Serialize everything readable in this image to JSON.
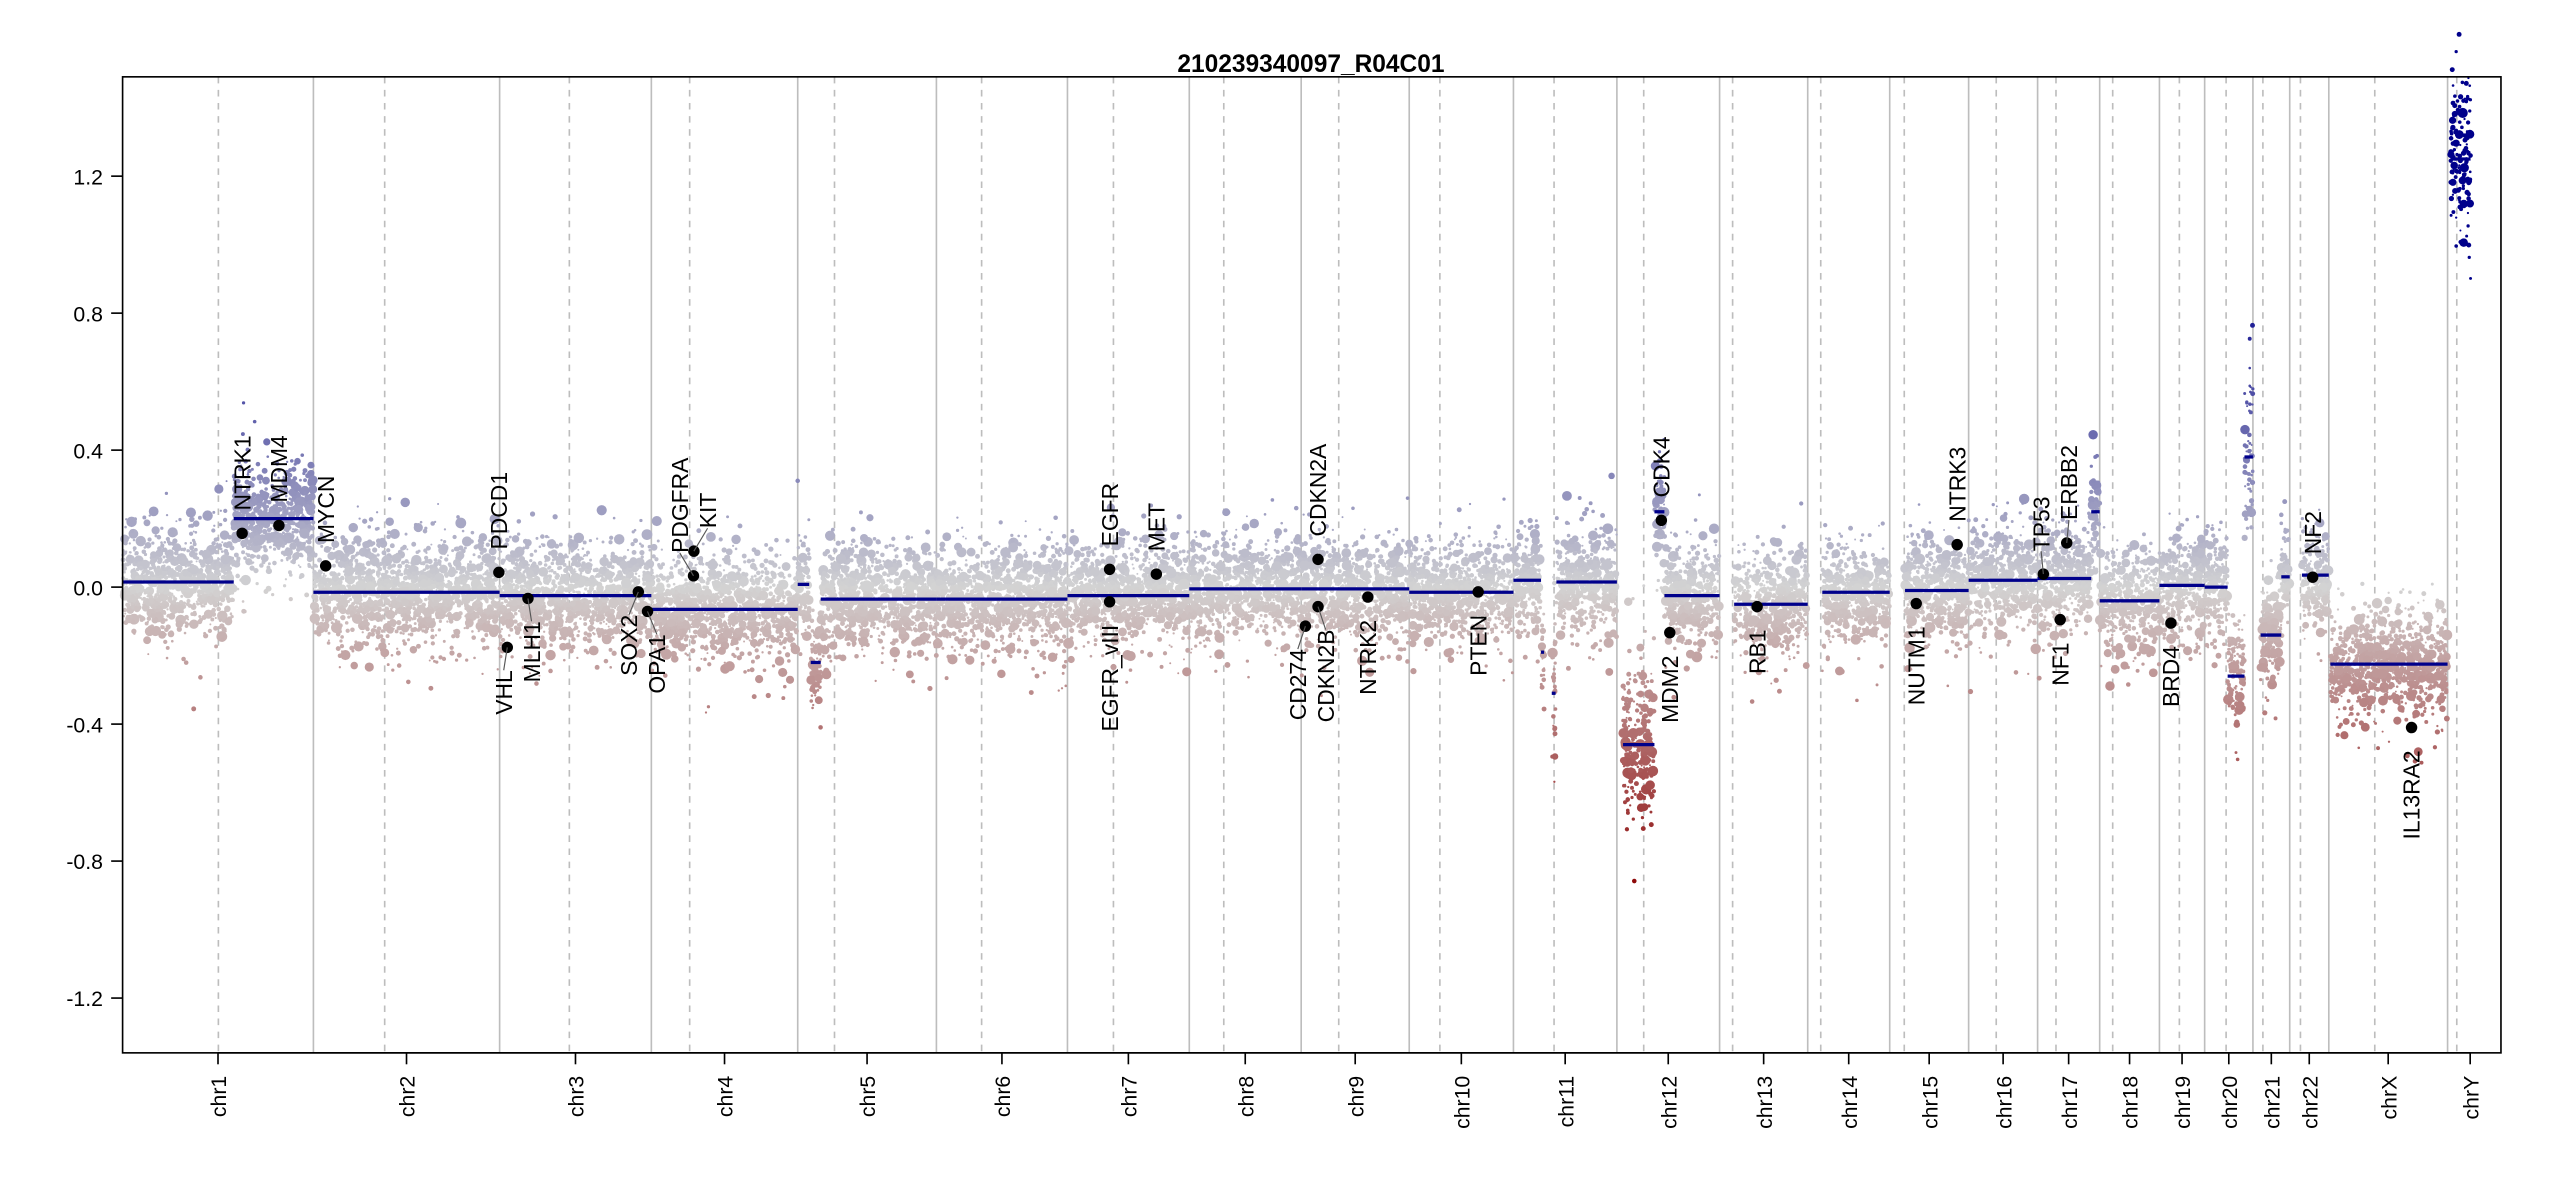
{
  "chart_data": {
    "type": "scatter",
    "title": "210239340097_R04C01",
    "xlabel": "",
    "ylabel": "",
    "ylim": [
      -1.36,
      1.49
    ],
    "yticks": [
      -1.2,
      -0.8,
      -0.4,
      0.0,
      0.4,
      0.8,
      1.2
    ],
    "ytick_labels": [
      "-1.2",
      "-0.8",
      "-0.4",
      "0.0",
      "0.4",
      "0.8",
      "1.2"
    ],
    "grid": "chromosome boundaries (solid) and centromeres (dashed)",
    "colors": {
      "gain": "#00008b",
      "neutral": "#d3d3d3",
      "loss": "#8b0000",
      "segment": "#00008b",
      "gene": "#000000"
    },
    "chromosomes": [
      {
        "name": "chr1",
        "length": 249,
        "centromere": 125
      },
      {
        "name": "chr2",
        "length": 243,
        "centromere": 93
      },
      {
        "name": "chr3",
        "length": 198,
        "centromere": 91
      },
      {
        "name": "chr4",
        "length": 191,
        "centromere": 50
      },
      {
        "name": "chr5",
        "length": 181,
        "centromere": 48
      },
      {
        "name": "chr6",
        "length": 171,
        "centromere": 59
      },
      {
        "name": "chr7",
        "length": 159,
        "centromere": 60
      },
      {
        "name": "chr8",
        "length": 146,
        "centromere": 45
      },
      {
        "name": "chr9",
        "length": 141,
        "centromere": 49
      },
      {
        "name": "chr10",
        "length": 136,
        "centromere": 40
      },
      {
        "name": "chr11",
        "length": 135,
        "centromere": 53
      },
      {
        "name": "chr12",
        "length": 134,
        "centromere": 35
      },
      {
        "name": "chr13",
        "length": 115,
        "centromere": 17
      },
      {
        "name": "chr14",
        "length": 107,
        "centromere": 17
      },
      {
        "name": "chr15",
        "length": 103,
        "centromere": 19
      },
      {
        "name": "chr16",
        "length": 90,
        "centromere": 36
      },
      {
        "name": "chr17",
        "length": 81,
        "centromere": 24
      },
      {
        "name": "chr18",
        "length": 78,
        "centromere": 17
      },
      {
        "name": "chr19",
        "length": 59,
        "centromere": 26
      },
      {
        "name": "chr20",
        "length": 63,
        "centromere": 28
      },
      {
        "name": "chr21",
        "length": 48,
        "centromere": 13
      },
      {
        "name": "chr22",
        "length": 51,
        "centromere": 14
      },
      {
        "name": "chrX",
        "length": 155,
        "centromere": 60
      },
      {
        "name": "chrY",
        "length": 59,
        "centromere": 12
      }
    ],
    "segments": [
      [
        "chr1",
        0,
        145,
        0.015
      ],
      [
        "chr1",
        145,
        249,
        0.2
      ],
      [
        "chr2",
        0,
        243,
        -0.015
      ],
      [
        "chr3",
        0,
        198,
        -0.025
      ],
      [
        "chr4",
        0,
        191,
        -0.065
      ],
      [
        "chr5",
        0,
        15,
        0.008
      ],
      [
        "chr5",
        17,
        30,
        -0.22
      ],
      [
        "chr5",
        30,
        181,
        -0.035
      ],
      [
        "chr6",
        0,
        171,
        -0.035
      ],
      [
        "chr7",
        0,
        159,
        -0.025
      ],
      [
        "chr8",
        0,
        146,
        -0.005
      ],
      [
        "chr9",
        0,
        141,
        -0.005
      ],
      [
        "chr10",
        0,
        136,
        -0.015
      ],
      [
        "chr11",
        0,
        36,
        0.02
      ],
      [
        "chr11",
        36,
        40,
        -0.19
      ],
      [
        "chr11",
        50,
        55,
        -0.31
      ],
      [
        "chr11",
        56,
        135,
        0.015
      ],
      [
        "chr12",
        8,
        49,
        -0.46
      ],
      [
        "chr12",
        49,
        62,
        0.22
      ],
      [
        "chr12",
        62,
        134,
        -0.025
      ],
      [
        "chr13",
        19,
        115,
        -0.05
      ],
      [
        "chr14",
        19,
        107,
        -0.015
      ],
      [
        "chr15",
        20,
        103,
        -0.01
      ],
      [
        "chr16",
        0,
        90,
        0.02
      ],
      [
        "chr17",
        0,
        70,
        0.025
      ],
      [
        "chr17",
        70,
        81,
        0.22
      ],
      [
        "chr18",
        0,
        78,
        -0.04
      ],
      [
        "chr19",
        0,
        59,
        0.005
      ],
      [
        "chr20",
        0,
        30,
        0.0
      ],
      [
        "chr20",
        30,
        52,
        -0.26
      ],
      [
        "chr20",
        52,
        63,
        0.38
      ],
      [
        "chr21",
        10,
        37,
        -0.14
      ],
      [
        "chr21",
        37,
        48,
        0.03
      ],
      [
        "chr22",
        16,
        51,
        0.035
      ],
      [
        "chrX",
        2,
        155,
        -0.225
      ],
      [
        "chrY",
        4,
        30,
        1.25
      ]
    ],
    "genes": [
      {
        "name": "NTRK1",
        "chr": "chr1",
        "pos": 156,
        "value": 0.157,
        "label": "above"
      },
      {
        "name": "MDM4",
        "chr": "chr1",
        "pos": 204,
        "value": 0.18,
        "label": "above"
      },
      {
        "name": "MYCN",
        "chr": "chr2",
        "pos": 16,
        "value": 0.062,
        "label": "above"
      },
      {
        "name": "PDCD1",
        "chr": "chr2",
        "pos": 242,
        "value": 0.043,
        "label": "above"
      },
      {
        "name": "VHL",
        "chr": "chr3",
        "pos": 10,
        "value": -0.176,
        "label": "below"
      },
      {
        "name": "MLH1",
        "chr": "chr3",
        "pos": 37,
        "value": -0.033,
        "label": "below"
      },
      {
        "name": "SOX2",
        "chr": "chr3",
        "pos": 181,
        "value": -0.014,
        "label": "below"
      },
      {
        "name": "OPA1",
        "chr": "chr3",
        "pos": 193,
        "value": -0.071,
        "label": "below"
      },
      {
        "name": "PDGFRA",
        "chr": "chr4",
        "pos": 55,
        "value": 0.033,
        "label": "above"
      },
      {
        "name": "KIT",
        "chr": "chr4",
        "pos": 55.5,
        "value": 0.105,
        "label": "above"
      },
      {
        "name": "EGFR",
        "chr": "chr7",
        "pos": 55,
        "value": 0.052,
        "label": "above"
      },
      {
        "name": "EGFR_vIII",
        "chr": "chr7",
        "pos": 55,
        "value": -0.043,
        "label": "below"
      },
      {
        "name": "MET",
        "chr": "chr7",
        "pos": 116,
        "value": 0.038,
        "label": "above"
      },
      {
        "name": "CDKN2A",
        "chr": "chr9",
        "pos": 22,
        "value": 0.081,
        "label": "above"
      },
      {
        "name": "CD274",
        "chr": "chr9",
        "pos": 5.5,
        "value": -0.114,
        "label": "below"
      },
      {
        "name": "CDKN2B",
        "chr": "chr9",
        "pos": 22,
        "value": -0.057,
        "label": "below"
      },
      {
        "name": "NTRK2",
        "chr": "chr9",
        "pos": 87,
        "value": -0.029,
        "label": "below"
      },
      {
        "name": "PTEN",
        "chr": "chr10",
        "pos": 90,
        "value": -0.014,
        "label": "below"
      },
      {
        "name": "CDK4",
        "chr": "chr12",
        "pos": 58,
        "value": 0.195,
        "label": "above"
      },
      {
        "name": "MDM2",
        "chr": "chr12",
        "pos": 69,
        "value": -0.133,
        "label": "below"
      },
      {
        "name": "RB1",
        "chr": "chr13",
        "pos": 49,
        "value": -0.057,
        "label": "below"
      },
      {
        "name": "NUTM1",
        "chr": "chr15",
        "pos": 34.6,
        "value": -0.048,
        "label": "below"
      },
      {
        "name": "NTRK3",
        "chr": "chr15",
        "pos": 88,
        "value": 0.124,
        "label": "above"
      },
      {
        "name": "TP53",
        "chr": "chr17",
        "pos": 7.5,
        "value": 0.038,
        "label": "above"
      },
      {
        "name": "ERBB2",
        "chr": "chr17",
        "pos": 38,
        "value": 0.129,
        "label": "above"
      },
      {
        "name": "NF1",
        "chr": "chr17",
        "pos": 29.5,
        "value": -0.095,
        "label": "below"
      },
      {
        "name": "BRD4",
        "chr": "chr19",
        "pos": 15,
        "value": -0.105,
        "label": "below"
      },
      {
        "name": "NF2",
        "chr": "chr22",
        "pos": 30,
        "value": 0.029,
        "label": "above"
      },
      {
        "name": "IL13RA2",
        "chr": "chrX",
        "pos": 108,
        "value": -0.41,
        "label": "below"
      }
    ]
  }
}
